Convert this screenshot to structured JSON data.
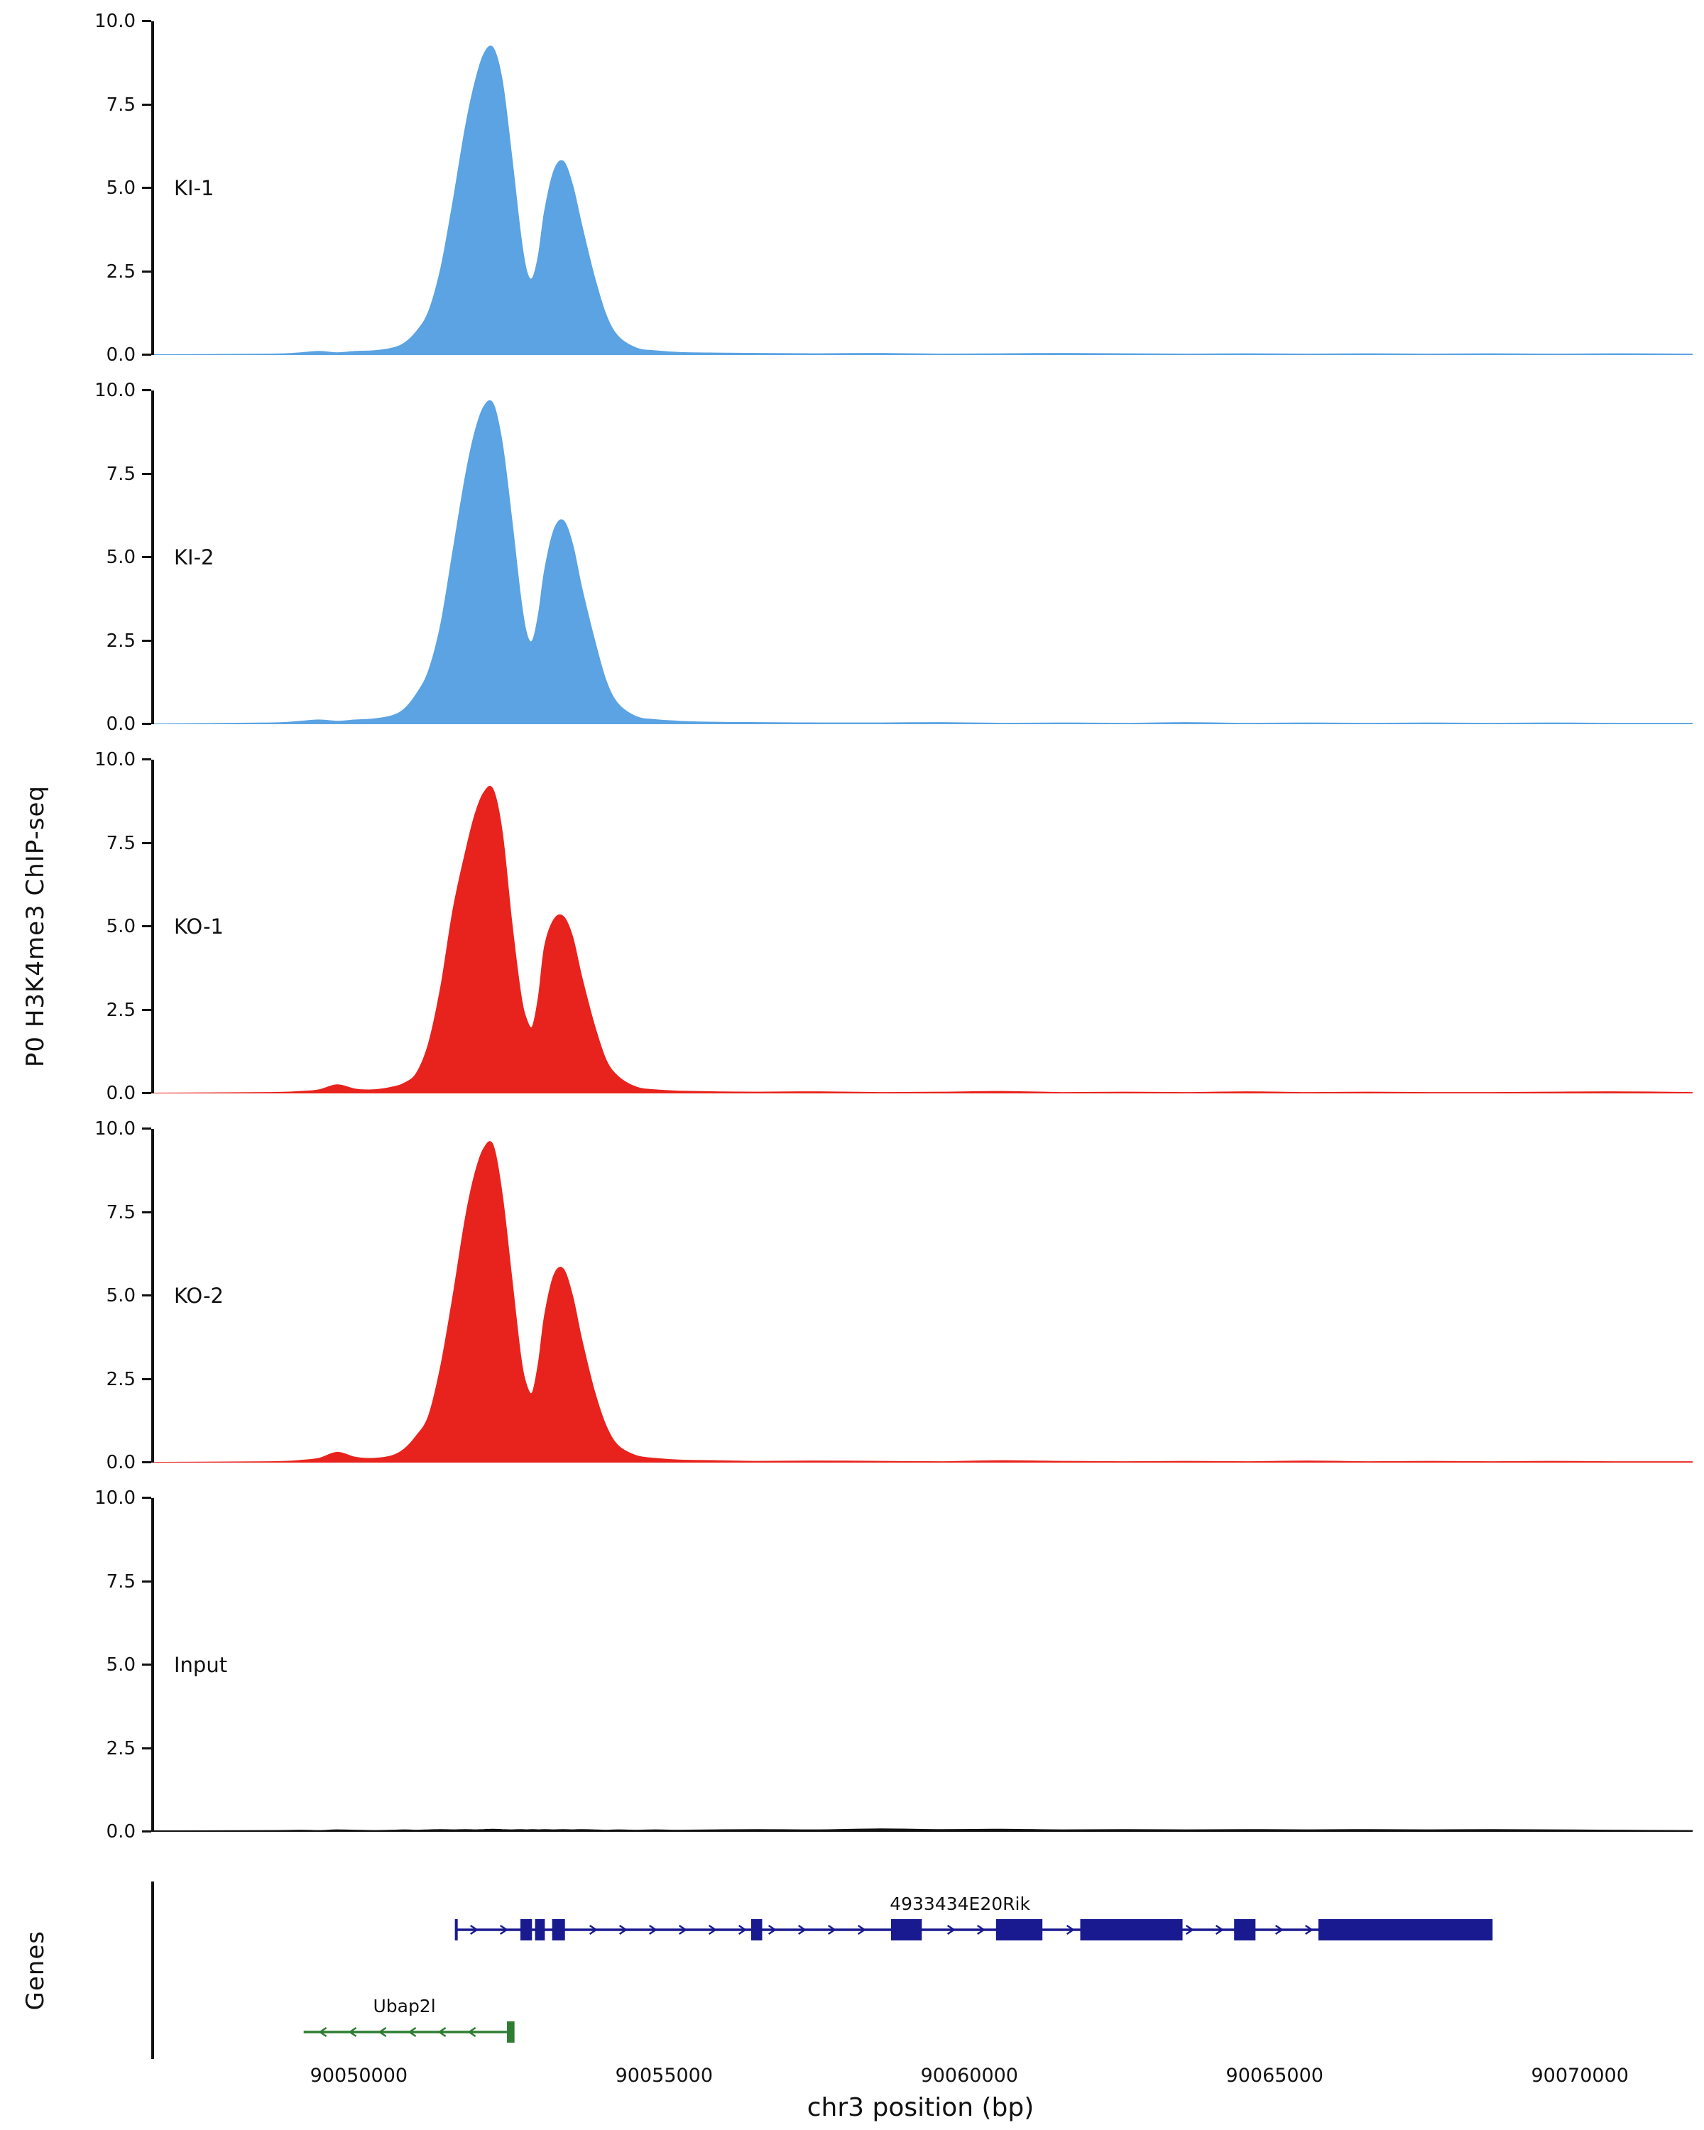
{
  "figure": {
    "ylabel": "P0 H3K4me3 ChIP-seq",
    "xlabel": "chr3 position (bp)",
    "genes_label": "Genes"
  },
  "chart_data": {
    "type": "area",
    "title": "",
    "xlabel": "chr3 position (bp)",
    "ylabel": "P0 H3K4me3 ChIP-seq",
    "xlim": [
      90046600,
      90071800
    ],
    "ylim": [
      0,
      10
    ],
    "yticks": [
      0,
      2.5,
      5,
      7.5,
      10
    ],
    "xticks": [
      90050000,
      90055000,
      90060000,
      90065000,
      90070000
    ],
    "grid": false,
    "legend": "none",
    "x": [
      90046600,
      90048500,
      90049000,
      90049300,
      90049600,
      90049900,
      90050200,
      90050500,
      90050700,
      90050900,
      90051100,
      90051300,
      90051500,
      90051700,
      90051850,
      90052000,
      90052150,
      90052300,
      90052450,
      90052600,
      90052700,
      90052800,
      90052900,
      90053000,
      90053150,
      90053300,
      90053450,
      90053600,
      90053800,
      90054000,
      90054200,
      90054500,
      90054800,
      90055200,
      90055800,
      90056500,
      90057500,
      90058500,
      90059500,
      90060500,
      90061500,
      90062500,
      90063500,
      90064500,
      90065500,
      90066500,
      90067500,
      90068500,
      90069500,
      90070500,
      90071800
    ],
    "series": [
      {
        "name": "KI-1",
        "color": "#5ba3e2",
        "values": [
          0,
          0.02,
          0.06,
          0.1,
          0.06,
          0.1,
          0.12,
          0.2,
          0.35,
          0.7,
          1.3,
          2.6,
          4.6,
          6.8,
          8.1,
          9.0,
          9.2,
          8.2,
          6.0,
          3.6,
          2.5,
          2.3,
          3.0,
          4.3,
          5.5,
          5.8,
          5.1,
          3.9,
          2.4,
          1.2,
          0.55,
          0.2,
          0.12,
          0.07,
          0.05,
          0.04,
          0.03,
          0.04,
          0.02,
          0.03,
          0.04,
          0.03,
          0.02,
          0.03,
          0.02,
          0.03,
          0.02,
          0.03,
          0.02,
          0.03,
          0.02
        ]
      },
      {
        "name": "KI-2",
        "color": "#5ba3e2",
        "values": [
          0,
          0.03,
          0.08,
          0.12,
          0.08,
          0.12,
          0.15,
          0.25,
          0.45,
          0.9,
          1.6,
          3.0,
          5.2,
          7.4,
          8.7,
          9.5,
          9.6,
          8.4,
          6.2,
          3.8,
          2.7,
          2.5,
          3.3,
          4.6,
          5.8,
          6.1,
          5.4,
          4.1,
          2.6,
          1.3,
          0.6,
          0.22,
          0.13,
          0.08,
          0.05,
          0.04,
          0.03,
          0.03,
          0.04,
          0.02,
          0.03,
          0.02,
          0.04,
          0.02,
          0.03,
          0.02,
          0.03,
          0.02,
          0.03,
          0.02,
          0.02
        ]
      },
      {
        "name": "KO-1",
        "color": "#e8231d",
        "values": [
          0,
          0.02,
          0.05,
          0.1,
          0.25,
          0.12,
          0.1,
          0.18,
          0.3,
          0.6,
          1.5,
          3.2,
          5.5,
          7.2,
          8.3,
          9.0,
          9.1,
          7.8,
          5.2,
          3.0,
          2.2,
          2.0,
          2.9,
          4.4,
          5.2,
          5.3,
          4.7,
          3.5,
          2.1,
          1.0,
          0.5,
          0.18,
          0.1,
          0.06,
          0.04,
          0.03,
          0.04,
          0.02,
          0.03,
          0.05,
          0.02,
          0.03,
          0.02,
          0.04,
          0.02,
          0.03,
          0.02,
          0.02,
          0.03,
          0.04,
          0.02
        ]
      },
      {
        "name": "KO-2",
        "color": "#e8231d",
        "values": [
          0,
          0.02,
          0.06,
          0.12,
          0.3,
          0.15,
          0.12,
          0.2,
          0.4,
          0.8,
          1.4,
          2.9,
          5.0,
          7.3,
          8.6,
          9.4,
          9.5,
          8.0,
          5.6,
          3.2,
          2.3,
          2.1,
          3.0,
          4.4,
          5.6,
          5.8,
          5.0,
          3.7,
          2.2,
          1.1,
          0.5,
          0.2,
          0.12,
          0.07,
          0.05,
          0.03,
          0.04,
          0.03,
          0.02,
          0.05,
          0.03,
          0.02,
          0.03,
          0.02,
          0.04,
          0.02,
          0.03,
          0.02,
          0.03,
          0.02,
          0.02
        ]
      },
      {
        "name": "Input",
        "color": "#111111",
        "values": [
          0.02,
          0.03,
          0.04,
          0.03,
          0.05,
          0.04,
          0.03,
          0.04,
          0.05,
          0.04,
          0.05,
          0.06,
          0.05,
          0.06,
          0.05,
          0.06,
          0.07,
          0.06,
          0.05,
          0.06,
          0.05,
          0.06,
          0.05,
          0.06,
          0.05,
          0.06,
          0.05,
          0.06,
          0.05,
          0.04,
          0.05,
          0.04,
          0.05,
          0.04,
          0.05,
          0.06,
          0.05,
          0.08,
          0.06,
          0.07,
          0.05,
          0.06,
          0.05,
          0.06,
          0.05,
          0.06,
          0.05,
          0.06,
          0.05,
          0.04,
          0.03
        ]
      }
    ],
    "genes": [
      {
        "name": "4933434E20Rik",
        "strand": "+",
        "color": "#191990",
        "row": 0,
        "start": 90051550,
        "end": 90068500,
        "label_x": 90059800,
        "exons": [
          [
            90052600,
            90052790
          ],
          [
            90052840,
            90053000
          ],
          [
            90053120,
            90053330
          ],
          [
            90056380,
            90056560
          ],
          [
            90058670,
            90059175
          ],
          [
            90060390,
            90061150
          ],
          [
            90061770,
            90063445
          ],
          [
            90064290,
            90064640
          ],
          [
            90065670,
            90068500
          ]
        ]
      },
      {
        "name": "Ubap2l",
        "strand": "-",
        "color": "#2e7d32",
        "row": 1,
        "start": 90049050,
        "end": 90052480,
        "label_x": 90050700,
        "exons": [
          [
            90052380,
            90052480
          ]
        ]
      }
    ]
  }
}
